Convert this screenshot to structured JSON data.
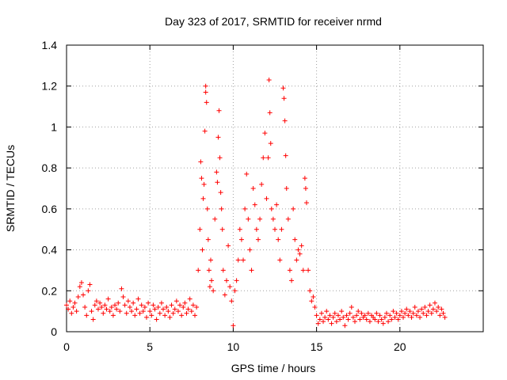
{
  "chart_data": {
    "type": "scatter",
    "title": "Day 323 of 2017, SRMTID for receiver nrmd",
    "xlabel": "GPS time / hours",
    "ylabel": "SRMTID / TECUs",
    "xlim": [
      0,
      25
    ],
    "ylim": [
      0,
      1.4
    ],
    "xticks": [
      0,
      5,
      10,
      15,
      20
    ],
    "xtick_labels": [
      "0",
      "5",
      "10",
      "15",
      "20"
    ],
    "yticks": [
      0,
      0.2,
      0.4,
      0.6,
      0.8,
      1,
      1.2,
      1.4
    ],
    "ytick_labels": [
      "0",
      "0.2",
      "0.4",
      "0.6",
      "0.8",
      "1",
      "1.2",
      "1.4"
    ],
    "grid": true,
    "marker": "+",
    "color": "#ff0000",
    "series": [
      {
        "name": "SRMTID",
        "points": [
          [
            0.0,
            0.13
          ],
          [
            0.1,
            0.11
          ],
          [
            0.2,
            0.15
          ],
          [
            0.3,
            0.09
          ],
          [
            0.4,
            0.12
          ],
          [
            0.5,
            0.14
          ],
          [
            0.6,
            0.1
          ],
          [
            0.7,
            0.17
          ],
          [
            0.8,
            0.22
          ],
          [
            0.9,
            0.24
          ],
          [
            1.0,
            0.18
          ],
          [
            1.1,
            0.12
          ],
          [
            1.2,
            0.08
          ],
          [
            1.3,
            0.2
          ],
          [
            1.4,
            0.23
          ],
          [
            1.5,
            0.1
          ],
          [
            1.6,
            0.06
          ],
          [
            1.7,
            0.13
          ],
          [
            1.8,
            0.15
          ],
          [
            1.9,
            0.11
          ],
          [
            2.0,
            0.14
          ],
          [
            2.1,
            0.12
          ],
          [
            2.2,
            0.09
          ],
          [
            2.3,
            0.13
          ],
          [
            2.4,
            0.11
          ],
          [
            2.5,
            0.16
          ],
          [
            2.6,
            0.1
          ],
          [
            2.7,
            0.12
          ],
          [
            2.8,
            0.08
          ],
          [
            2.9,
            0.13
          ],
          [
            3.0,
            0.11
          ],
          [
            3.1,
            0.14
          ],
          [
            3.2,
            0.1
          ],
          [
            3.3,
            0.21
          ],
          [
            3.4,
            0.17
          ],
          [
            3.5,
            0.13
          ],
          [
            3.6,
            0.09
          ],
          [
            3.7,
            0.15
          ],
          [
            3.8,
            0.12
          ],
          [
            3.9,
            0.1
          ],
          [
            4.0,
            0.14
          ],
          [
            4.1,
            0.08
          ],
          [
            4.2,
            0.11
          ],
          [
            4.3,
            0.16
          ],
          [
            4.4,
            0.09
          ],
          [
            4.5,
            0.13
          ],
          [
            4.6,
            0.1
          ],
          [
            4.7,
            0.12
          ],
          [
            4.8,
            0.07
          ],
          [
            4.9,
            0.14
          ],
          [
            5.0,
            0.1
          ],
          [
            5.1,
            0.08
          ],
          [
            5.2,
            0.13
          ],
          [
            5.3,
            0.11
          ],
          [
            5.4,
            0.06
          ],
          [
            5.5,
            0.12
          ],
          [
            5.6,
            0.09
          ],
          [
            5.7,
            0.14
          ],
          [
            5.8,
            0.11
          ],
          [
            5.9,
            0.08
          ],
          [
            6.0,
            0.12
          ],
          [
            6.1,
            0.1
          ],
          [
            6.2,
            0.07
          ],
          [
            6.3,
            0.13
          ],
          [
            6.4,
            0.09
          ],
          [
            6.5,
            0.11
          ],
          [
            6.6,
            0.15
          ],
          [
            6.7,
            0.1
          ],
          [
            6.8,
            0.13
          ],
          [
            6.9,
            0.08
          ],
          [
            7.0,
            0.12
          ],
          [
            7.1,
            0.14
          ],
          [
            7.2,
            0.09
          ],
          [
            7.3,
            0.11
          ],
          [
            7.4,
            0.16
          ],
          [
            7.5,
            0.1
          ],
          [
            7.6,
            0.13
          ],
          [
            7.7,
            0.08
          ],
          [
            7.8,
            0.12
          ],
          [
            7.9,
            0.3
          ],
          [
            8.0,
            0.5
          ],
          [
            8.05,
            0.83
          ],
          [
            8.1,
            0.75
          ],
          [
            8.15,
            0.4
          ],
          [
            8.2,
            0.65
          ],
          [
            8.25,
            0.72
          ],
          [
            8.3,
            0.98
          ],
          [
            8.35,
            1.2
          ],
          [
            8.35,
            1.17
          ],
          [
            8.4,
            1.12
          ],
          [
            8.45,
            0.6
          ],
          [
            8.5,
            0.45
          ],
          [
            8.55,
            0.3
          ],
          [
            8.6,
            0.22
          ],
          [
            8.65,
            0.35
          ],
          [
            8.7,
            0.25
          ],
          [
            8.8,
            0.2
          ],
          [
            8.9,
            0.55
          ],
          [
            9.0,
            0.78
          ],
          [
            9.05,
            0.73
          ],
          [
            9.1,
            0.95
          ],
          [
            9.15,
            1.08
          ],
          [
            9.2,
            0.85
          ],
          [
            9.25,
            0.68
          ],
          [
            9.3,
            0.6
          ],
          [
            9.35,
            0.5
          ],
          [
            9.4,
            0.3
          ],
          [
            9.5,
            0.18
          ],
          [
            9.6,
            0.25
          ],
          [
            9.7,
            0.42
          ],
          [
            9.8,
            0.22
          ],
          [
            9.9,
            0.15
          ],
          [
            10.0,
            0.03
          ],
          [
            10.1,
            0.2
          ],
          [
            10.2,
            0.25
          ],
          [
            10.3,
            0.35
          ],
          [
            10.4,
            0.5
          ],
          [
            10.5,
            0.45
          ],
          [
            10.6,
            0.35
          ],
          [
            10.7,
            0.6
          ],
          [
            10.8,
            0.77
          ],
          [
            10.9,
            0.55
          ],
          [
            11.0,
            0.4
          ],
          [
            11.1,
            0.3
          ],
          [
            11.2,
            0.7
          ],
          [
            11.3,
            0.62
          ],
          [
            11.4,
            0.5
          ],
          [
            11.5,
            0.45
          ],
          [
            11.6,
            0.55
          ],
          [
            11.7,
            0.72
          ],
          [
            11.8,
            0.85
          ],
          [
            11.9,
            0.97
          ],
          [
            12.0,
            0.65
          ],
          [
            12.1,
            0.85
          ],
          [
            12.15,
            1.23
          ],
          [
            12.2,
            1.07
          ],
          [
            12.25,
            0.92
          ],
          [
            12.3,
            0.6
          ],
          [
            12.4,
            0.55
          ],
          [
            12.5,
            0.5
          ],
          [
            12.6,
            0.62
          ],
          [
            12.7,
            0.45
          ],
          [
            12.8,
            0.35
          ],
          [
            12.9,
            0.5
          ],
          [
            13.0,
            1.19
          ],
          [
            13.05,
            1.14
          ],
          [
            13.1,
            1.03
          ],
          [
            13.15,
            0.86
          ],
          [
            13.2,
            0.7
          ],
          [
            13.3,
            0.55
          ],
          [
            13.4,
            0.3
          ],
          [
            13.5,
            0.25
          ],
          [
            13.6,
            0.6
          ],
          [
            13.7,
            0.45
          ],
          [
            13.8,
            0.35
          ],
          [
            13.9,
            0.4
          ],
          [
            14.0,
            0.38
          ],
          [
            14.1,
            0.42
          ],
          [
            14.2,
            0.3
          ],
          [
            14.3,
            0.75
          ],
          [
            14.35,
            0.7
          ],
          [
            14.4,
            0.63
          ],
          [
            14.5,
            0.3
          ],
          [
            14.6,
            0.2
          ],
          [
            14.7,
            0.15
          ],
          [
            14.8,
            0.17
          ],
          [
            14.9,
            0.12
          ],
          [
            15.0,
            0.08
          ],
          [
            15.1,
            0.04
          ],
          [
            15.2,
            0.06
          ],
          [
            15.3,
            0.09
          ],
          [
            15.4,
            0.05
          ],
          [
            15.5,
            0.07
          ],
          [
            15.6,
            0.1
          ],
          [
            15.7,
            0.06
          ],
          [
            15.8,
            0.08
          ],
          [
            15.9,
            0.04
          ],
          [
            16.0,
            0.07
          ],
          [
            16.1,
            0.09
          ],
          [
            16.2,
            0.05
          ],
          [
            16.3,
            0.08
          ],
          [
            16.4,
            0.06
          ],
          [
            16.5,
            0.1
          ],
          [
            16.6,
            0.07
          ],
          [
            16.7,
            0.03
          ],
          [
            16.8,
            0.08
          ],
          [
            16.9,
            0.06
          ],
          [
            17.0,
            0.09
          ],
          [
            17.1,
            0.12
          ],
          [
            17.2,
            0.07
          ],
          [
            17.3,
            0.05
          ],
          [
            17.4,
            0.08
          ],
          [
            17.5,
            0.1
          ],
          [
            17.6,
            0.06
          ],
          [
            17.7,
            0.09
          ],
          [
            17.8,
            0.07
          ],
          [
            17.9,
            0.08
          ],
          [
            18.0,
            0.06
          ],
          [
            18.1,
            0.09
          ],
          [
            18.2,
            0.05
          ],
          [
            18.3,
            0.08
          ],
          [
            18.4,
            0.07
          ],
          [
            18.5,
            0.06
          ],
          [
            18.6,
            0.09
          ],
          [
            18.7,
            0.05
          ],
          [
            18.8,
            0.08
          ],
          [
            18.9,
            0.06
          ],
          [
            19.0,
            0.04
          ],
          [
            19.1,
            0.07
          ],
          [
            19.2,
            0.09
          ],
          [
            19.3,
            0.05
          ],
          [
            19.4,
            0.08
          ],
          [
            19.5,
            0.06
          ],
          [
            19.6,
            0.1
          ],
          [
            19.7,
            0.07
          ],
          [
            19.8,
            0.09
          ],
          [
            19.9,
            0.06
          ],
          [
            20.0,
            0.08
          ],
          [
            20.1,
            0.1
          ],
          [
            20.2,
            0.07
          ],
          [
            20.3,
            0.09
          ],
          [
            20.4,
            0.11
          ],
          [
            20.5,
            0.08
          ],
          [
            20.6,
            0.1
          ],
          [
            20.7,
            0.07
          ],
          [
            20.8,
            0.09
          ],
          [
            20.9,
            0.12
          ],
          [
            21.0,
            0.08
          ],
          [
            21.1,
            0.1
          ],
          [
            21.2,
            0.07
          ],
          [
            21.3,
            0.11
          ],
          [
            21.4,
            0.09
          ],
          [
            21.5,
            0.12
          ],
          [
            21.6,
            0.08
          ],
          [
            21.7,
            0.1
          ],
          [
            21.8,
            0.13
          ],
          [
            21.9,
            0.09
          ],
          [
            22.0,
            0.11
          ],
          [
            22.1,
            0.14
          ],
          [
            22.2,
            0.1
          ],
          [
            22.3,
            0.12
          ],
          [
            22.4,
            0.08
          ],
          [
            22.5,
            0.11
          ],
          [
            22.6,
            0.09
          ],
          [
            22.7,
            0.07
          ]
        ]
      }
    ]
  }
}
